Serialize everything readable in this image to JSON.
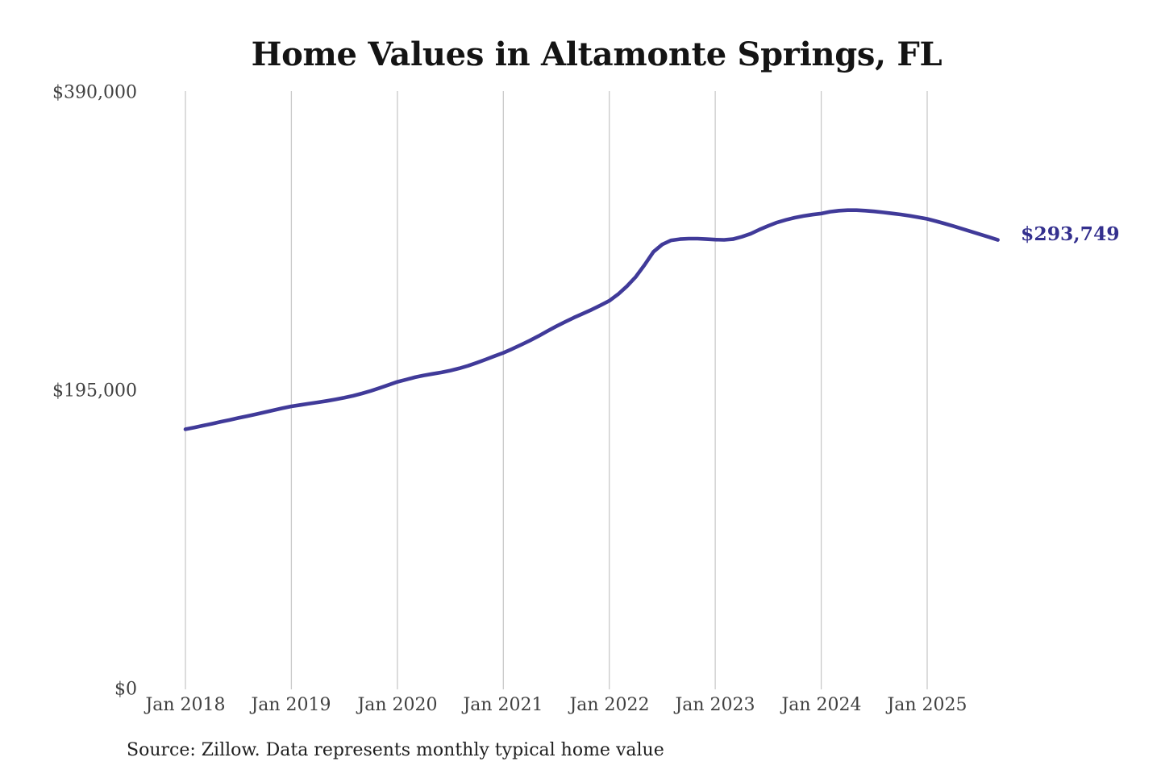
{
  "title": "Home Values in Altamonte Springs, FL",
  "source_note": "Source: Zillow. Data represents monthly typical home value",
  "colors": {
    "background": "#ffffff",
    "title_text": "#141414",
    "axis_text": "#414141",
    "gridline": "#c9c9c9",
    "line": "#403a99",
    "end_label": "#34308e",
    "source_text": "#1f1f1f"
  },
  "y_axis": {
    "labels": [
      {
        "text": "$390,000",
        "value": 390000
      },
      {
        "text": "$195,000",
        "value": 195000
      },
      {
        "text": "$0",
        "value": 0
      }
    ]
  },
  "x_axis": {
    "labels": [
      "Jan 2018",
      "Jan 2019",
      "Jan 2020",
      "Jan 2021",
      "Jan 2022",
      "Jan 2023",
      "Jan 2024",
      "Jan 2025"
    ]
  },
  "chart_data": {
    "type": "line",
    "title": "Home Values in Altamonte Springs, FL",
    "series_name": "Monthly typical home value",
    "xlabel": "",
    "ylabel": "",
    "ylim": [
      0,
      390000
    ],
    "y_ticks": [
      0,
      195000,
      390000
    ],
    "y_tick_labels": [
      "$0",
      "$195,000",
      "$390,000"
    ],
    "x_tick_labels": [
      "Jan 2018",
      "Jan 2019",
      "Jan 2020",
      "Jan 2021",
      "Jan 2022",
      "Jan 2023",
      "Jan 2024",
      "Jan 2025"
    ],
    "grid": "vertical-only",
    "legend": "none",
    "line_color": "#403a99",
    "latest_value": 293749,
    "latest_value_label": "$293,749",
    "months": [
      "2018-01",
      "2018-02",
      "2018-03",
      "2018-04",
      "2018-05",
      "2018-06",
      "2018-07",
      "2018-08",
      "2018-09",
      "2018-10",
      "2018-11",
      "2018-12",
      "2019-01",
      "2019-02",
      "2019-03",
      "2019-04",
      "2019-05",
      "2019-06",
      "2019-07",
      "2019-08",
      "2019-09",
      "2019-10",
      "2019-11",
      "2019-12",
      "2020-01",
      "2020-02",
      "2020-03",
      "2020-04",
      "2020-05",
      "2020-06",
      "2020-07",
      "2020-08",
      "2020-09",
      "2020-10",
      "2020-11",
      "2020-12",
      "2021-01",
      "2021-02",
      "2021-03",
      "2021-04",
      "2021-05",
      "2021-06",
      "2021-07",
      "2021-08",
      "2021-09",
      "2021-10",
      "2021-11",
      "2021-12",
      "2022-01",
      "2022-02",
      "2022-03",
      "2022-04",
      "2022-05",
      "2022-06",
      "2022-07",
      "2022-08",
      "2022-09",
      "2022-10",
      "2022-11",
      "2022-12",
      "2023-01",
      "2023-02",
      "2023-03",
      "2023-04",
      "2023-05",
      "2023-06",
      "2023-07",
      "2023-08",
      "2023-09",
      "2023-10",
      "2023-11",
      "2023-12",
      "2024-01",
      "2024-02",
      "2024-03",
      "2024-04",
      "2024-05",
      "2024-06",
      "2024-07",
      "2024-08",
      "2024-09",
      "2024-10",
      "2024-11",
      "2024-12",
      "2025-01",
      "2025-02",
      "2025-03",
      "2025-04",
      "2025-05",
      "2025-06",
      "2025-07",
      "2025-08",
      "2025-09"
    ],
    "values": [
      170000,
      171200,
      172400,
      173600,
      174900,
      176100,
      177400,
      178600,
      179900,
      181200,
      182500,
      183800,
      185000,
      185900,
      186800,
      187600,
      188500,
      189500,
      190600,
      191900,
      193400,
      195100,
      197000,
      199000,
      201000,
      202500,
      204000,
      205200,
      206200,
      207200,
      208400,
      209800,
      211500,
      213500,
      215600,
      217800,
      220000,
      222500,
      225200,
      228000,
      231000,
      234200,
      237300,
      240200,
      243000,
      245600,
      248200,
      251000,
      254000,
      258300,
      263500,
      269700,
      277500,
      286000,
      290800,
      293500,
      294300,
      294600,
      294600,
      294300,
      294000,
      293800,
      294300,
      295800,
      297800,
      300500,
      303000,
      305200,
      306900,
      308300,
      309400,
      310300,
      311000,
      312200,
      312900,
      313200,
      313200,
      312900,
      312400,
      311800,
      311100,
      310400,
      309600,
      308600,
      307500,
      306000,
      304400,
      302700,
      301000,
      299200,
      297400,
      295600,
      293749
    ]
  }
}
